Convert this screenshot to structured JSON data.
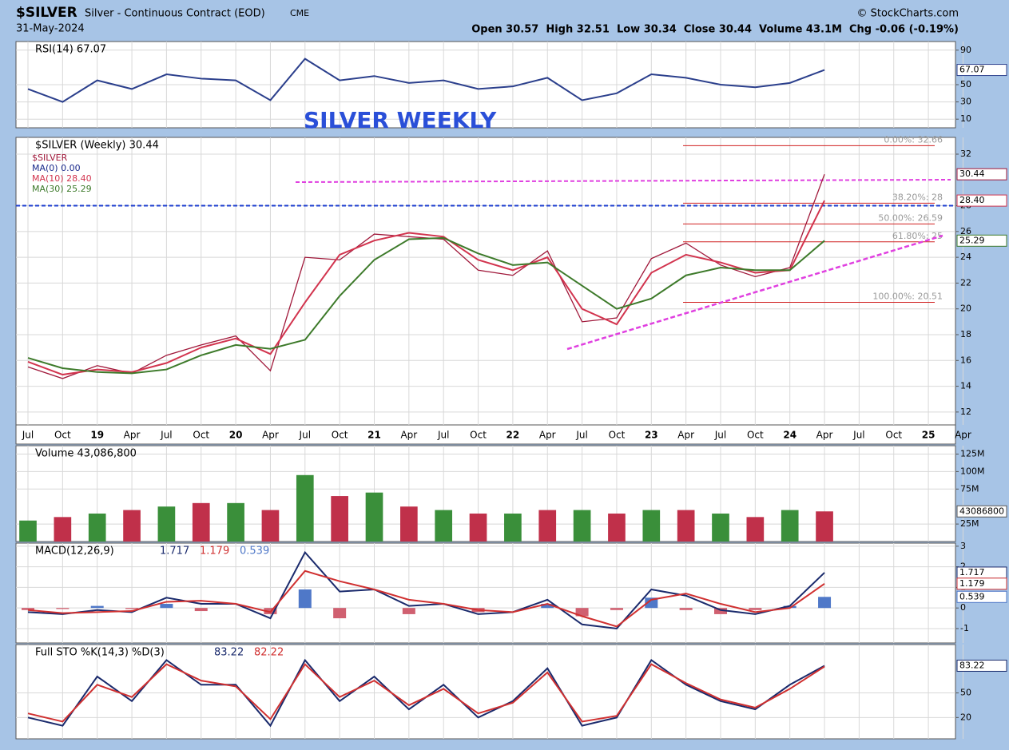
{
  "header": {
    "symbol": "$SILVER",
    "name": "Silver - Continuous Contract (EOD)",
    "exchange": "CME",
    "source": "© StockCharts.com",
    "date": "31-May-2024",
    "quote": "Open 30.57  High 32.51  Low 30.34  Close 30.44  Volume 43.1M  Chg -0.06 (-0.19%)"
  },
  "chart_data": [
    {
      "type": "line",
      "panel": "rsi",
      "title": "RSI(14) 67.07",
      "categories": [
        "Jul",
        "Oct",
        "19",
        "Apr",
        "Jul",
        "Oct",
        "20",
        "Apr",
        "Jul",
        "Oct",
        "21",
        "Apr",
        "Jul",
        "Oct",
        "22",
        "Apr",
        "Jul",
        "Oct",
        "23",
        "Apr",
        "Jul",
        "Oct",
        "24",
        "Apr",
        "Jul",
        "Oct",
        "25",
        "Apr"
      ],
      "series": [
        {
          "name": "RSI(14)",
          "color": "#2b3f8c",
          "tag": "67.07",
          "values": [
            45,
            30,
            55,
            45,
            62,
            57,
            55,
            32,
            80,
            55,
            60,
            52,
            55,
            45,
            48,
            58,
            32,
            40,
            62,
            58,
            50,
            47,
            52,
            67.07,
            null,
            null,
            null,
            null
          ]
        }
      ],
      "ylim": [
        0,
        100
      ],
      "yticks": [
        10,
        30,
        50,
        90
      ],
      "grid": true
    },
    {
      "type": "line",
      "panel": "price",
      "title": "$SILVER (Weekly) 30.44",
      "annotation": "SILVER WEEKLY",
      "fib": [
        {
          "label": "0.00%: 32.66",
          "value": 32.66
        },
        {
          "label": "38.20%: 28",
          "value": 28.2
        },
        {
          "label": "50.00%: 26.59",
          "value": 26.59
        },
        {
          "label": "61.80%: 25",
          "value": 25.2
        },
        {
          "label": "100.00%: 20.51",
          "value": 20.51
        }
      ],
      "series": [
        {
          "name": "$SILVER",
          "color": "#a0183a",
          "tag": "30.44",
          "values": [
            15.5,
            14.6,
            15.6,
            15.0,
            16.4,
            17.2,
            17.9,
            15.2,
            24.0,
            23.8,
            25.8,
            25.6,
            25.4,
            23.0,
            22.6,
            24.5,
            19.0,
            19.3,
            23.9,
            25.1,
            23.4,
            22.5,
            23.2,
            30.44,
            null,
            null,
            null,
            null
          ]
        },
        {
          "name": "MA(0) 0.00",
          "color": "#1a2a8c",
          "values": [
            null,
            null,
            null,
            null,
            null,
            null,
            null,
            null,
            null,
            null,
            null,
            null,
            null,
            null,
            null,
            null,
            null,
            null,
            null,
            null,
            null,
            null,
            null,
            null,
            null,
            null,
            null,
            null
          ]
        },
        {
          "name": "MA(10) 28.40",
          "color": "#d2344e",
          "tag": "28.40",
          "values": [
            15.9,
            14.9,
            15.3,
            15.1,
            15.8,
            17.0,
            17.7,
            16.5,
            20.5,
            24.2,
            25.3,
            25.9,
            25.6,
            23.8,
            23.0,
            24.0,
            20.0,
            18.8,
            22.8,
            24.2,
            23.6,
            22.8,
            23.0,
            28.4,
            null,
            null,
            null,
            null
          ]
        },
        {
          "name": "MA(30) 25.29",
          "color": "#3d7a2a",
          "tag": "25.29",
          "values": [
            16.2,
            15.4,
            15.1,
            15.0,
            15.3,
            16.4,
            17.2,
            16.9,
            17.6,
            21.0,
            23.8,
            25.4,
            25.5,
            24.3,
            23.4,
            23.6,
            21.8,
            20.0,
            20.8,
            22.6,
            23.2,
            23.0,
            23.0,
            25.29,
            null,
            null,
            null,
            null
          ]
        }
      ],
      "ylim": [
        11,
        33.3
      ],
      "yticks": [
        12,
        14,
        16,
        18,
        20,
        22,
        24,
        26,
        28,
        32
      ],
      "grid": true
    },
    {
      "type": "bar",
      "panel": "volume",
      "title": "Volume 43,086,800",
      "color": "#3a8f3a",
      "tag": "43086800",
      "values": [
        30000000,
        35000000,
        40000000,
        45000000,
        50000000,
        55000000,
        55000000,
        45000000,
        95000000,
        65000000,
        70000000,
        50000000,
        45000000,
        40000000,
        40000000,
        45000000,
        45000000,
        40000000,
        45000000,
        45000000,
        40000000,
        35000000,
        45000000,
        43086800,
        null,
        null,
        null,
        null
      ],
      "ylim": [
        0,
        137000000
      ],
      "yticks": [
        {
          "value": 25000000,
          "label": "25M"
        },
        {
          "value": 75000000,
          "label": "75M"
        },
        {
          "value": 100000000,
          "label": "100M"
        },
        {
          "value": 125000000,
          "label": "125M"
        }
      ],
      "grid": true
    },
    {
      "type": "line",
      "panel": "macd",
      "title": "MACD(12,26,9)",
      "series": [
        {
          "name": "1.717",
          "color": "#1a2a6c",
          "tag": "1.717",
          "values": [
            -0.2,
            -0.3,
            -0.1,
            -0.2,
            0.5,
            0.2,
            0.2,
            -0.5,
            2.7,
            0.8,
            0.9,
            0.1,
            0.2,
            -0.3,
            -0.2,
            0.4,
            -0.8,
            -1.0,
            0.9,
            0.6,
            -0.1,
            -0.3,
            0.1,
            1.717,
            null,
            null,
            null,
            null
          ]
        },
        {
          "name": "1.179",
          "color": "#d03030",
          "tag": "1.179",
          "values": [
            -0.1,
            -0.25,
            -0.2,
            -0.15,
            0.3,
            0.35,
            0.2,
            -0.2,
            1.8,
            1.3,
            0.9,
            0.4,
            0.2,
            -0.1,
            -0.2,
            0.2,
            -0.4,
            -0.9,
            0.4,
            0.7,
            0.2,
            -0.2,
            0.0,
            1.179,
            null,
            null,
            null,
            null
          ]
        }
      ],
      "hist": {
        "name": "0.539",
        "color": "#4f78c8",
        "tag": "0.539",
        "values": [
          -0.1,
          -0.05,
          0.1,
          -0.05,
          0.2,
          -0.15,
          0.0,
          -0.3,
          0.9,
          -0.5,
          0.0,
          -0.3,
          0.0,
          -0.2,
          0.0,
          0.2,
          -0.4,
          -0.1,
          0.5,
          -0.1,
          -0.3,
          -0.1,
          0.1,
          0.539,
          null,
          null,
          null,
          null
        ]
      },
      "ylim": [
        -1.7,
        3.15
      ],
      "yticks": [
        -1,
        0,
        1,
        2,
        3
      ],
      "grid": true
    },
    {
      "type": "line",
      "panel": "sto",
      "title": "Full STO %K(14,3) %D(3)",
      "series": [
        {
          "name": "83.22",
          "color": "#1a2a6c",
          "tag": "83.22",
          "values": [
            20,
            10,
            70,
            40,
            90,
            60,
            60,
            10,
            90,
            40,
            70,
            30,
            60,
            20,
            40,
            80,
            10,
            20,
            90,
            60,
            40,
            30,
            60,
            83.22,
            null,
            null,
            null,
            null
          ]
        },
        {
          "name": "82.22",
          "color": "#d03030",
          "values": [
            25,
            15,
            60,
            45,
            85,
            65,
            58,
            18,
            85,
            45,
            65,
            35,
            55,
            25,
            38,
            75,
            15,
            22,
            85,
            62,
            42,
            32,
            55,
            82.22,
            null,
            null,
            null,
            null
          ]
        }
      ],
      "ylim": [
        -6,
        109
      ],
      "yticks": [
        20,
        50
      ],
      "grid": true
    }
  ]
}
